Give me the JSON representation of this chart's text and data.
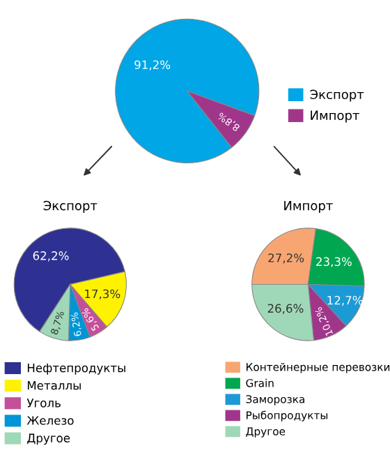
{
  "chart_data": [
    {
      "type": "pie",
      "categories": [
        "Экспорт",
        "Импорт"
      ],
      "values": [
        91.2,
        8.8
      ],
      "colors": [
        "#00a6e6",
        "#a0368a"
      ],
      "value_labels": [
        "91,2%",
        "8,8%"
      ],
      "legend": "right"
    },
    {
      "type": "pie",
      "title": "Экспорт",
      "categories": [
        "Нефтепродукты",
        "Металлы",
        "Уголь",
        "Железо",
        "Другое"
      ],
      "values": [
        62.2,
        17.3,
        5.6,
        6.2,
        8.7
      ],
      "colors": [
        "#2e3192",
        "#fff200",
        "#c4509a",
        "#0095d6",
        "#9fd8b8"
      ],
      "value_labels": [
        "62,2%",
        "17,3%",
        "5,6%",
        "6,2%",
        "8,7%"
      ],
      "legend": "bottom"
    },
    {
      "type": "pie",
      "title": "Импорт",
      "categories": [
        "Контейнерные перевозки",
        "Grain",
        "Заморозка",
        "Рыбопродукты",
        "Другое"
      ],
      "values": [
        27.2,
        23.3,
        12.7,
        10.2,
        26.6
      ],
      "colors": [
        "#f7a672",
        "#00a650",
        "#1c9ad6",
        "#a0368a",
        "#9fd8b8"
      ],
      "value_labels": [
        "27,2%",
        "23,3%",
        "12,7%",
        "10,2%",
        "26,6%"
      ],
      "legend": "bottom"
    }
  ]
}
